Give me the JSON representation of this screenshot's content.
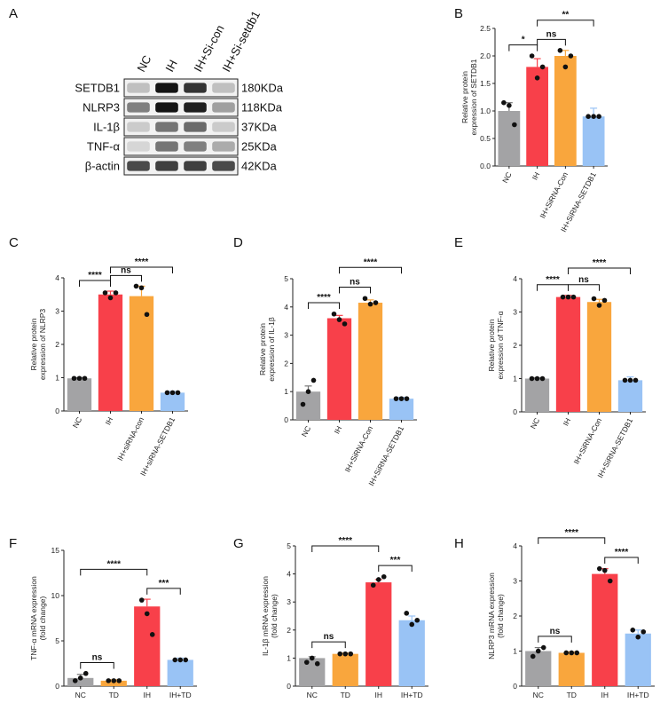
{
  "colors": {
    "gray": "#a3a3a5",
    "red": "#f8404a",
    "orange": "#f9a63d",
    "blue": "#99c3f5",
    "text": "#111111"
  },
  "blot": {
    "panel": "A",
    "lanes": [
      "NC",
      "IH",
      "IH+Si-con",
      "IH+Si-setdb1"
    ],
    "proteins": [
      {
        "name": "SETDB1",
        "size": "180KDa",
        "levels": [
          0.2,
          1.0,
          0.85,
          0.2
        ]
      },
      {
        "name": "NLRP3",
        "size": "118KDa",
        "levels": [
          0.5,
          1.0,
          0.95,
          0.35
        ]
      },
      {
        "name": "IL-1β",
        "size": "37KDa",
        "levels": [
          0.15,
          0.55,
          0.6,
          0.15
        ]
      },
      {
        "name": "TNF-α",
        "size": "25KDa",
        "levels": [
          0.1,
          0.55,
          0.5,
          0.3
        ]
      },
      {
        "name": "β-actin",
        "size": "42KDa",
        "levels": [
          0.75,
          0.8,
          0.8,
          0.75
        ]
      }
    ]
  },
  "chart_data": [
    {
      "panel": "B",
      "type": "bar",
      "categories": [
        "NC",
        "IH",
        "IH+SiRNA-Con",
        "IH+SiRNA-SETDB1"
      ],
      "values": [
        1.0,
        1.8,
        2.0,
        0.9
      ],
      "errors": [
        0.15,
        0.15,
        0.1,
        0.15
      ],
      "points": [
        [
          1.15,
          1.1,
          0.75
        ],
        [
          2.0,
          1.6,
          1.8
        ],
        [
          2.1,
          1.8,
          2.0
        ]
      ],
      "ylabel": "Relative protein\nexpression of SETDB1",
      "ylim": [
        0,
        2.5
      ],
      "yticks": [
        "0.0",
        "0.5",
        "1.0",
        "1.5",
        "2.0",
        "2.5"
      ],
      "sig": [
        {
          "a": 0,
          "b": 1,
          "label": "*"
        },
        {
          "a": 1,
          "b": 2,
          "label": "ns"
        },
        {
          "a": 1,
          "b": 3,
          "label": "**"
        }
      ]
    },
    {
      "panel": "C",
      "type": "bar",
      "categories": [
        "NC",
        "IH",
        "IH+siRNA-con",
        "IH+siRNA-SETDB1"
      ],
      "values": [
        0.98,
        3.5,
        3.45,
        0.55
      ],
      "errors": [
        0.02,
        0.1,
        0.3,
        0.04
      ],
      "points": [
        [
          0.98,
          0.98,
          0.98
        ],
        [
          3.55,
          3.4,
          3.55
        ],
        [
          3.75,
          3.7,
          2.9
        ]
      ],
      "ylabel": "Relative protein\nexpression of NLRP3",
      "ylim": [
        0,
        4
      ],
      "yticks": [
        "0",
        "1",
        "2",
        "3",
        "4"
      ],
      "sig": [
        {
          "a": 0,
          "b": 1,
          "label": "****"
        },
        {
          "a": 1,
          "b": 2,
          "label": "ns"
        },
        {
          "a": 1,
          "b": 3,
          "label": "****"
        }
      ]
    },
    {
      "panel": "D",
      "type": "bar",
      "categories": [
        "NC",
        "IH",
        "IH+SiRNA-Con",
        "IH+SiRNA-SETDB1"
      ],
      "values": [
        1.0,
        3.6,
        4.15,
        0.75
      ],
      "errors": [
        0.2,
        0.1,
        0.1,
        0.05
      ],
      "points": [
        [
          0.55,
          1.0,
          1.4
        ],
        [
          3.75,
          3.55,
          3.4
        ],
        [
          4.3,
          4.1,
          4.15
        ]
      ],
      "ylabel": "Relative protein\nexpression of IL-1β",
      "ylim": [
        0,
        5
      ],
      "yticks": [
        "0",
        "1",
        "2",
        "3",
        "4",
        "5"
      ],
      "sig": [
        {
          "a": 0,
          "b": 1,
          "label": "****"
        },
        {
          "a": 1,
          "b": 2,
          "label": "ns"
        },
        {
          "a": 1,
          "b": 3,
          "label": "****"
        }
      ]
    },
    {
      "panel": "E",
      "type": "bar",
      "categories": [
        "NC",
        "IH",
        "IH+SiRNA-Con",
        "IH+SiRNA-SETDB1"
      ],
      "values": [
        1.0,
        3.45,
        3.3,
        0.95
      ],
      "errors": [
        0.02,
        0.05,
        0.08,
        0.1
      ],
      "points": [
        [
          1.0,
          1.0,
          1.0
        ],
        [
          3.45,
          3.45,
          3.45
        ],
        [
          3.4,
          3.2,
          3.35
        ]
      ],
      "ylabel": "Relative protein\nexpression of TNF-α",
      "ylim": [
        0,
        4
      ],
      "yticks": [
        "0",
        "1",
        "2",
        "3",
        "4"
      ],
      "sig": [
        {
          "a": 0,
          "b": 1,
          "label": "****"
        },
        {
          "a": 1,
          "b": 2,
          "label": "ns"
        },
        {
          "a": 1,
          "b": 3,
          "label": "****"
        }
      ]
    },
    {
      "panel": "F",
      "type": "bar",
      "categories": [
        "NC",
        "TD",
        "IH",
        "IH+TD"
      ],
      "values": [
        0.9,
        0.6,
        8.8,
        2.9
      ],
      "errors": [
        0.4,
        0.1,
        0.8,
        0.2
      ],
      "points": [
        [
          0.6,
          0.9,
          1.4
        ],
        [
          0.6,
          0.6,
          0.6
        ],
        [
          9.5,
          8.0,
          5.7
        ]
      ],
      "ylabel": "TNF-α mRNA expression\n(fold change)",
      "ylim": [
        0,
        15
      ],
      "yticks": [
        "0",
        "5",
        "10",
        "15"
      ],
      "sig": [
        {
          "a": 0,
          "b": 1,
          "label": "ns"
        },
        {
          "a": 0,
          "b": 2,
          "label": "****"
        },
        {
          "a": 2,
          "b": 3,
          "label": "***"
        }
      ]
    },
    {
      "panel": "G",
      "type": "bar",
      "categories": [
        "NC",
        "TD",
        "IH",
        "IH+TD"
      ],
      "values": [
        1.0,
        1.15,
        3.7,
        2.35
      ],
      "errors": [
        0.05,
        0.03,
        0.1,
        0.15
      ],
      "points": [
        [
          0.85,
          1.0,
          0.8
        ],
        [
          1.15,
          1.15,
          1.15
        ],
        [
          3.6,
          3.8,
          3.9
        ],
        [
          2.6,
          2.2,
          2.35
        ]
      ],
      "ylabel": "IL-1β mRNA expression\n(fold change)",
      "ylim": [
        0,
        5
      ],
      "yticks": [
        "0",
        "1",
        "2",
        "3",
        "4",
        "5"
      ],
      "sig": [
        {
          "a": 0,
          "b": 1,
          "label": "ns"
        },
        {
          "a": 0,
          "b": 2,
          "label": "****"
        },
        {
          "a": 2,
          "b": 3,
          "label": "***"
        }
      ]
    },
    {
      "panel": "H",
      "type": "bar",
      "categories": [
        "NC",
        "TD",
        "IH",
        "IH+TD"
      ],
      "values": [
        1.0,
        0.95,
        3.2,
        1.5
      ],
      "errors": [
        0.1,
        0.03,
        0.15,
        0.1
      ],
      "points": [
        [
          0.85,
          1.0,
          1.1
        ],
        [
          0.95,
          0.95,
          0.95
        ],
        [
          3.35,
          3.3,
          3.0
        ],
        [
          1.6,
          1.4,
          1.55
        ]
      ],
      "ylabel": "NLRP3 mRNA expression\n(fold change)",
      "ylim": [
        0,
        4
      ],
      "yticks": [
        "0",
        "1",
        "2",
        "3",
        "4"
      ],
      "sig": [
        {
          "a": 0,
          "b": 1,
          "label": "ns"
        },
        {
          "a": 0,
          "b": 2,
          "label": "****"
        },
        {
          "a": 2,
          "b": 3,
          "label": "****"
        }
      ]
    }
  ]
}
